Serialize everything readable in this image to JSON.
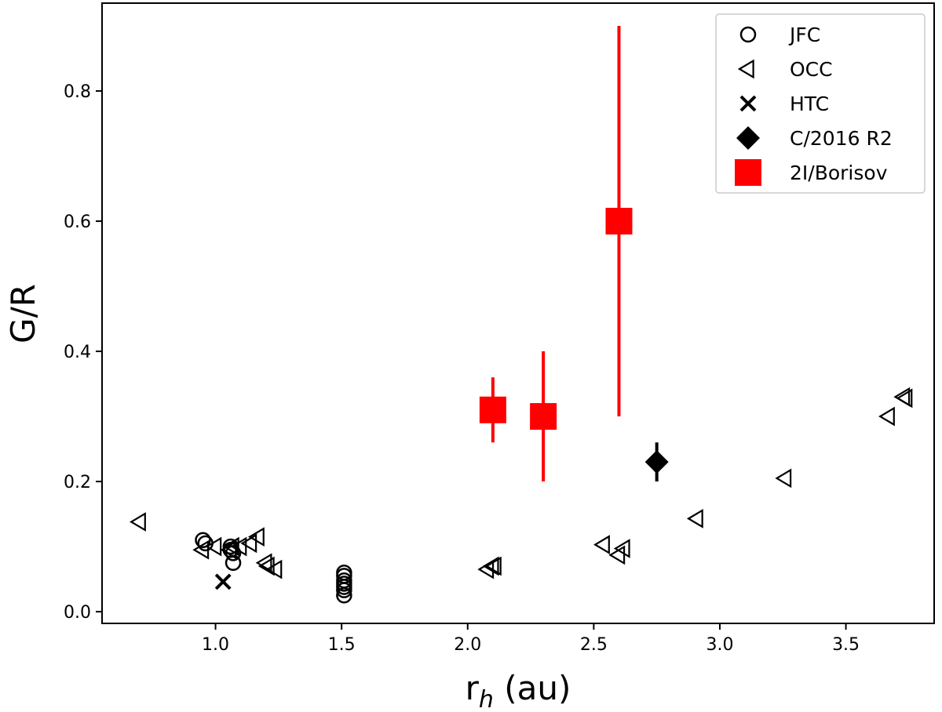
{
  "chart_data": {
    "type": "scatter",
    "xlabel": "r",
    "xlabel_sub": "h",
    "xlabel_suffix": " (au)",
    "ylabel": "G/R",
    "xlim": [
      0.55,
      3.85
    ],
    "ylim": [
      -0.018,
      0.935
    ],
    "xticks": [
      1.0,
      1.5,
      2.0,
      2.5,
      3.0,
      3.5
    ],
    "xtick_labels": [
      "1.0",
      "1.5",
      "2.0",
      "2.5",
      "3.0",
      "3.5"
    ],
    "yticks": [
      0.0,
      0.2,
      0.4,
      0.6,
      0.8
    ],
    "ytick_labels": [
      "0.0",
      "0.2",
      "0.4",
      "0.6",
      "0.8"
    ],
    "grid": false,
    "legend_position": "top-right",
    "series": [
      {
        "name": "JFC",
        "marker": "circle-open",
        "color": "#000000",
        "points": [
          {
            "x": 0.95,
            "y": 0.11
          },
          {
            "x": 0.96,
            "y": 0.105
          },
          {
            "x": 1.06,
            "y": 0.1
          },
          {
            "x": 1.06,
            "y": 0.095
          },
          {
            "x": 1.07,
            "y": 0.09
          },
          {
            "x": 1.07,
            "y": 0.075
          },
          {
            "x": 1.51,
            "y": 0.06
          },
          {
            "x": 1.51,
            "y": 0.055
          },
          {
            "x": 1.51,
            "y": 0.048
          },
          {
            "x": 1.51,
            "y": 0.043
          },
          {
            "x": 1.51,
            "y": 0.038
          },
          {
            "x": 1.51,
            "y": 0.033
          },
          {
            "x": 1.51,
            "y": 0.025
          }
        ]
      },
      {
        "name": "OCC",
        "marker": "triangle-left-open",
        "color": "#000000",
        "points": [
          {
            "x": 0.7,
            "y": 0.138
          },
          {
            "x": 0.95,
            "y": 0.095
          },
          {
            "x": 1.0,
            "y": 0.1
          },
          {
            "x": 1.06,
            "y": 0.095
          },
          {
            "x": 1.07,
            "y": 0.1
          },
          {
            "x": 1.1,
            "y": 0.1
          },
          {
            "x": 1.14,
            "y": 0.105
          },
          {
            "x": 1.17,
            "y": 0.115
          },
          {
            "x": 1.2,
            "y": 0.075
          },
          {
            "x": 1.21,
            "y": 0.07
          },
          {
            "x": 1.24,
            "y": 0.065
          },
          {
            "x": 2.08,
            "y": 0.065
          },
          {
            "x": 2.1,
            "y": 0.07
          },
          {
            "x": 2.11,
            "y": 0.07
          },
          {
            "x": 2.54,
            "y": 0.103
          },
          {
            "x": 2.6,
            "y": 0.087
          },
          {
            "x": 2.62,
            "y": 0.097
          },
          {
            "x": 2.91,
            "y": 0.143
          },
          {
            "x": 3.26,
            "y": 0.205
          },
          {
            "x": 3.67,
            "y": 0.3
          },
          {
            "x": 3.73,
            "y": 0.33
          },
          {
            "x": 3.74,
            "y": 0.328
          }
        ]
      },
      {
        "name": "HTC",
        "marker": "x",
        "color": "#000000",
        "points": [
          {
            "x": 1.03,
            "y": 0.046
          }
        ]
      },
      {
        "name": "C/2016 R2",
        "marker": "diamond-filled",
        "color": "#000000",
        "points": [
          {
            "x": 2.75,
            "y": 0.23,
            "err_low": 0.2,
            "err_high": 0.26
          }
        ]
      },
      {
        "name": "2I/Borisov",
        "marker": "square-filled",
        "color": "#ff0000",
        "points": [
          {
            "x": 2.1,
            "y": 0.31,
            "err_low": 0.26,
            "err_high": 0.36
          },
          {
            "x": 2.3,
            "y": 0.3,
            "err_low": 0.2,
            "err_high": 0.4
          },
          {
            "x": 2.6,
            "y": 0.6,
            "err_low": 0.3,
            "err_high": 0.9
          }
        ]
      }
    ]
  }
}
